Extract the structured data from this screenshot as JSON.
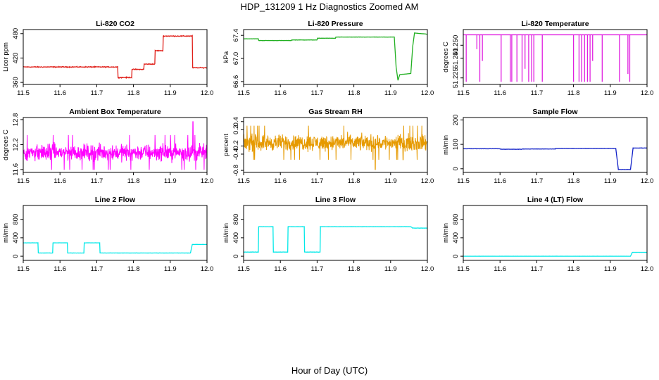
{
  "figure": {
    "title": "HDP_131209  1 Hz Diagnostics Zoomed AM",
    "xlabel": "Hour of Day (UTC)"
  },
  "chart_data": [
    {
      "type": "line",
      "title": "Li-820 CO2",
      "ylabel": "Licor ppm",
      "color": "#e0201a",
      "xlim": [
        11.5,
        12.0
      ],
      "ylim": [
        355,
        490
      ],
      "xticks": [
        "11.5",
        "11.6",
        "11.7",
        "11.8",
        "11.9",
        "12.0"
      ],
      "yticks": [
        "360",
        "420",
        "480"
      ],
      "noise": 1.5,
      "series": [
        {
          "x": [
            11.5,
            11.757,
            11.757,
            11.795,
            11.795,
            11.828,
            11.828,
            11.858,
            11.858,
            11.88,
            11.88,
            11.96,
            11.96,
            12.0
          ],
          "y": [
            398,
            398,
            372,
            372,
            392,
            392,
            405,
            405,
            438,
            438,
            474,
            474,
            396,
            396
          ]
        }
      ]
    },
    {
      "type": "line",
      "title": "Li-820 Pressure",
      "ylabel": "kPa",
      "color": "#22b022",
      "xlim": [
        11.5,
        12.0
      ],
      "ylim": [
        66.55,
        67.5
      ],
      "xticks": [
        "11.5",
        "11.6",
        "11.7",
        "11.8",
        "11.9",
        "12.0"
      ],
      "yticks": [
        "66.6",
        "67.0",
        "67.4"
      ],
      "noise": 0.003,
      "series": [
        {
          "x": [
            11.5,
            11.54,
            11.54,
            11.63,
            11.63,
            11.7,
            11.7,
            11.75,
            11.75,
            11.91,
            11.915,
            11.92,
            11.925,
            11.955,
            11.96,
            11.965,
            12.0
          ],
          "y": [
            67.34,
            67.34,
            67.31,
            67.31,
            67.32,
            67.32,
            67.35,
            67.35,
            67.37,
            67.37,
            66.85,
            66.62,
            66.72,
            66.74,
            67.2,
            67.44,
            67.42
          ]
        }
      ]
    },
    {
      "type": "line",
      "title": "Li-820 Temperature",
      "ylabel": "degrees C",
      "color": "#e020e0",
      "xlim": [
        11.5,
        12.0
      ],
      "ylim": [
        51.22,
        51.262
      ],
      "xticks": [
        "11.5",
        "11.6",
        "11.7",
        "11.8",
        "11.9",
        "12.0"
      ],
      "yticks": [
        "51.225",
        "51.240",
        "51.250"
      ],
      "baseline": 51.258,
      "low": 51.222,
      "dips": [
        [
          11.508,
          51.222
        ],
        [
          11.537,
          51.247
        ],
        [
          11.545,
          51.222
        ],
        [
          11.552,
          51.238
        ],
        [
          11.603,
          51.222
        ],
        [
          11.628,
          51.222
        ],
        [
          11.632,
          51.222
        ],
        [
          11.646,
          51.222
        ],
        [
          11.66,
          51.222
        ],
        [
          11.668,
          51.232
        ],
        [
          11.678,
          51.222
        ],
        [
          11.686,
          51.222
        ],
        [
          11.692,
          51.222
        ],
        [
          11.715,
          51.222
        ],
        [
          11.8,
          51.222
        ],
        [
          11.815,
          51.222
        ],
        [
          11.822,
          51.222
        ],
        [
          11.83,
          51.222
        ],
        [
          11.838,
          51.222
        ],
        [
          11.845,
          51.222
        ],
        [
          11.852,
          51.238
        ],
        [
          11.878,
          51.222
        ],
        [
          11.925,
          51.222
        ],
        [
          11.948,
          51.228
        ],
        [
          11.953,
          51.222
        ]
      ]
    },
    {
      "type": "line",
      "title": "Ambient Box Temperature",
      "ylabel": "degrees C",
      "color": "#ff00ff",
      "xlim": [
        11.5,
        12.0
      ],
      "ylim": [
        11.53,
        12.85
      ],
      "xticks": [
        "11.5",
        "11.6",
        "11.7",
        "11.8",
        "11.9",
        "12.0"
      ],
      "yticks": [
        "11.6",
        "12.2",
        "12.8"
      ],
      "center": 12.01,
      "spread": 0.22,
      "peak": [
        11.962,
        12.75
      ]
    },
    {
      "type": "line",
      "title": "Gas Stream RH",
      "ylabel": "percent",
      "color": "#e69a00",
      "xlim": [
        11.5,
        12.0
      ],
      "ylim": [
        -0.85,
        0.5
      ],
      "xticks": [
        "11.5",
        "11.6",
        "11.7",
        "11.8",
        "11.9",
        "12.0"
      ],
      "yticks": [
        "-0.8",
        "-0.4",
        "-0.2",
        "0.2",
        "0.4"
      ],
      "center": -0.12,
      "spread": 0.22,
      "low": [
        11.858,
        -0.78
      ]
    },
    {
      "type": "line",
      "title": "Sample Flow",
      "ylabel": "ml/min",
      "color": "#1020c8",
      "xlim": [
        11.5,
        12.0
      ],
      "ylim": [
        -15,
        210
      ],
      "xticks": [
        "11.5",
        "11.6",
        "11.7",
        "11.8",
        "11.9",
        "12.0"
      ],
      "yticks": [
        "0",
        "100",
        "200"
      ],
      "noise": 0.8,
      "series": [
        {
          "x": [
            11.5,
            11.6,
            11.6,
            11.66,
            11.66,
            11.75,
            11.75,
            11.915,
            11.922,
            11.955,
            11.962,
            12.0
          ],
          "y": [
            82,
            82,
            80,
            80,
            81,
            81,
            83,
            83,
            -3,
            -3,
            85,
            85
          ]
        }
      ]
    },
    {
      "type": "line",
      "title": "Line 2 Flow",
      "ylabel": "ml/min",
      "color": "#00e8e8",
      "xlim": [
        11.5,
        12.0
      ],
      "ylim": [
        -90,
        1100
      ],
      "xticks": [
        "11.5",
        "11.6",
        "11.7",
        "11.8",
        "11.9",
        "12.0"
      ],
      "yticks": [
        "0",
        "400",
        "800"
      ],
      "noise": 3,
      "series": [
        {
          "x": [
            11.5,
            11.54,
            11.54,
            11.58,
            11.58,
            11.62,
            11.62,
            11.665,
            11.665,
            11.708,
            11.708,
            11.955,
            11.96,
            12.0
          ],
          "y": [
            290,
            290,
            70,
            70,
            290,
            290,
            70,
            70,
            290,
            290,
            70,
            70,
            255,
            255
          ]
        }
      ]
    },
    {
      "type": "line",
      "title": "Line 3 Flow",
      "ylabel": "ml/min",
      "color": "#00e8e8",
      "xlim": [
        11.5,
        12.0
      ],
      "ylim": [
        -90,
        1100
      ],
      "xticks": [
        "11.5",
        "11.6",
        "11.7",
        "11.8",
        "11.9",
        "12.0"
      ],
      "yticks": [
        "0",
        "400",
        "800"
      ],
      "noise": 4,
      "series": [
        {
          "x": [
            11.5,
            11.54,
            11.54,
            11.58,
            11.58,
            11.62,
            11.62,
            11.665,
            11.665,
            11.708,
            11.708,
            11.955,
            11.96,
            12.0
          ],
          "y": [
            90,
            90,
            640,
            640,
            90,
            90,
            640,
            640,
            90,
            90,
            640,
            640,
            610,
            610
          ]
        }
      ]
    },
    {
      "type": "line",
      "title": "Line 4 (LT) Flow",
      "ylabel": "ml/min",
      "color": "#00e8e8",
      "xlim": [
        11.5,
        12.0
      ],
      "ylim": [
        -90,
        1100
      ],
      "xticks": [
        "11.5",
        "11.6",
        "11.7",
        "11.8",
        "11.9",
        "12.0"
      ],
      "yticks": [
        "0",
        "400",
        "800"
      ],
      "noise": 1,
      "series": [
        {
          "x": [
            11.5,
            11.955,
            11.96,
            12.0
          ],
          "y": [
            0,
            0,
            85,
            85
          ]
        }
      ]
    }
  ]
}
